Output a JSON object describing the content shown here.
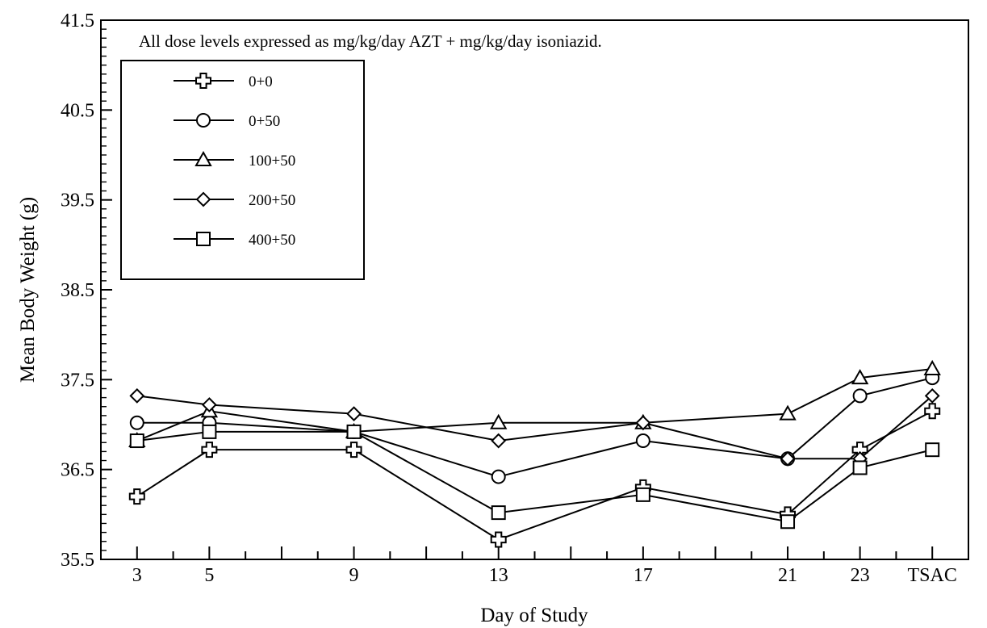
{
  "chart_data": {
    "type": "line",
    "title": "",
    "annotation": "All dose levels expressed as mg/kg/day AZT + mg/kg/day isoniazid.",
    "xlabel": "Day of Study",
    "ylabel": "Mean Body Weight (g)",
    "ylim": [
      35.5,
      41.5
    ],
    "yticks": [
      "35.5",
      "36.5",
      "37.5",
      "38.5",
      "39.5",
      "40.5",
      "41.5"
    ],
    "categories": [
      "3",
      "5",
      "9",
      "13",
      "17",
      "21",
      "23",
      "TSAC"
    ],
    "x_positions": [
      3,
      5,
      9,
      13,
      17,
      21,
      23,
      25
    ],
    "grid": false,
    "legend_position": "top-left",
    "series": [
      {
        "name": "0+0",
        "marker": "cross",
        "values": [
          36.2,
          36.72,
          36.72,
          35.72,
          36.3,
          36.0,
          36.72,
          37.15
        ]
      },
      {
        "name": "0+50",
        "marker": "circle",
        "values": [
          37.02,
          37.02,
          36.92,
          36.42,
          36.82,
          36.62,
          37.32,
          37.52
        ]
      },
      {
        "name": "100+50",
        "marker": "triangle",
        "values": [
          36.82,
          37.15,
          36.92,
          37.02,
          37.02,
          37.12,
          37.52,
          37.62
        ]
      },
      {
        "name": "200+50",
        "marker": "diamond",
        "values": [
          37.32,
          37.22,
          37.12,
          36.82,
          37.02,
          36.62,
          36.62,
          37.32
        ]
      },
      {
        "name": "400+50",
        "marker": "square",
        "values": [
          36.82,
          36.92,
          36.92,
          36.02,
          36.22,
          35.92,
          36.52,
          36.72
        ]
      }
    ]
  }
}
